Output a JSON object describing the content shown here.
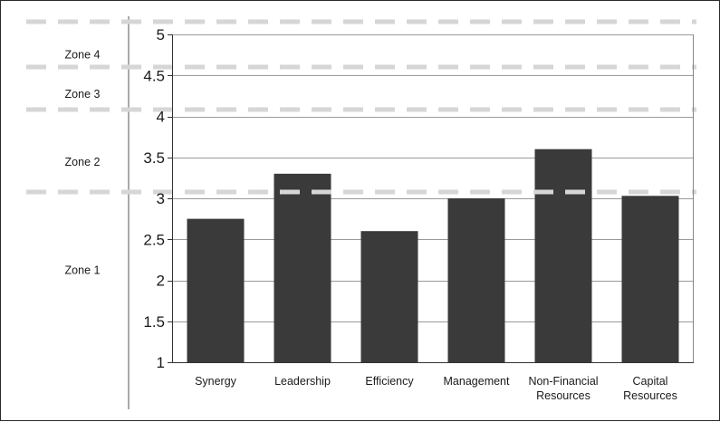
{
  "chart_data": {
    "type": "bar",
    "categories": [
      [
        "Synergy"
      ],
      [
        "Leadership"
      ],
      [
        "Efficiency"
      ],
      [
        "Management"
      ],
      [
        "Non-Financial",
        "Resources"
      ],
      [
        "Capital",
        "Resources"
      ]
    ],
    "values": [
      2.75,
      3.3,
      2.6,
      3.0,
      3.6,
      3.03
    ],
    "ylim": [
      1,
      5
    ],
    "yticks": [
      "1",
      "1.5",
      "2",
      "2.5",
      "3",
      "3.5",
      "4",
      "4.5",
      "5"
    ],
    "grid": true,
    "bar_color": "#3a3a3a",
    "zones": [
      {
        "label": "Zone 4",
        "value": 4.75
      },
      {
        "label": "Zone 3",
        "value": 4.27
      },
      {
        "label": "Zone 2",
        "value": 3.44
      },
      {
        "label": "Zone 1",
        "value": 2.12
      }
    ],
    "zone_boundaries": [
      5.15,
      4.6,
      4.08,
      3.08
    ],
    "zone_line_color": "#d6d6d6"
  }
}
